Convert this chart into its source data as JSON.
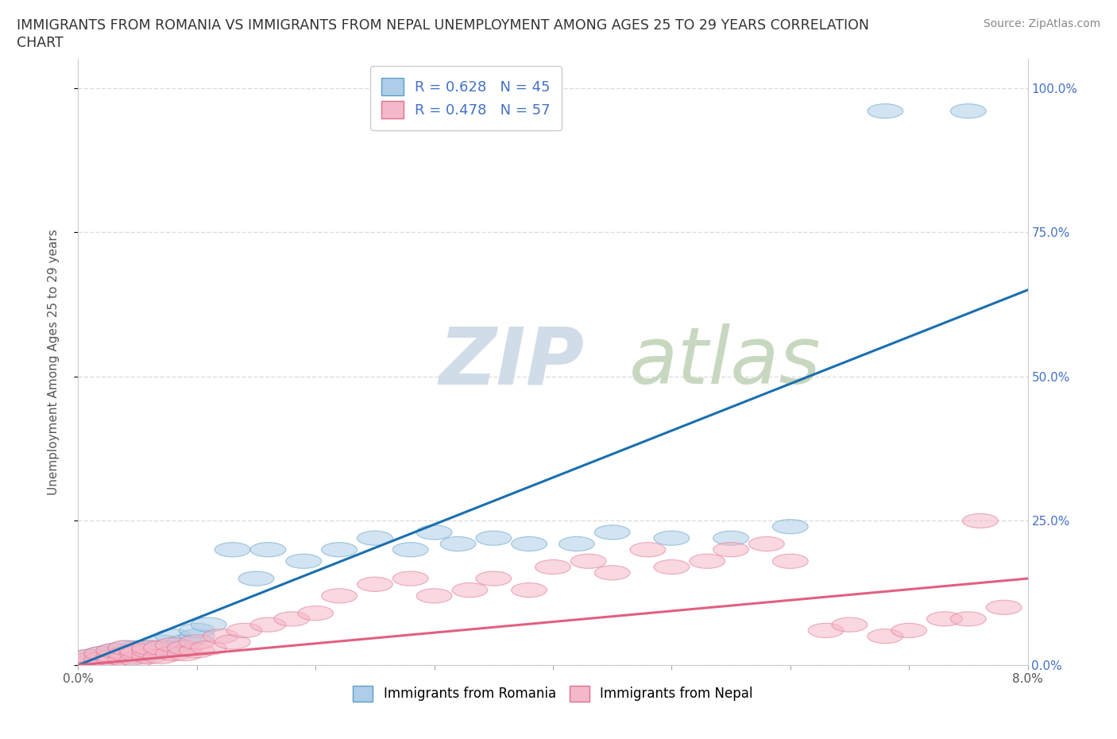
{
  "title_line1": "IMMIGRANTS FROM ROMANIA VS IMMIGRANTS FROM NEPAL UNEMPLOYMENT AMONG AGES 25 TO 29 YEARS CORRELATION",
  "title_line2": "CHART",
  "source": "Source: ZipAtlas.com",
  "ylabel": "Unemployment Among Ages 25 to 29 years",
  "xlim": [
    0.0,
    0.08
  ],
  "ylim": [
    0.0,
    1.05
  ],
  "xticks": [
    0.0,
    0.01,
    0.02,
    0.03,
    0.04,
    0.05,
    0.06,
    0.07,
    0.08
  ],
  "yticks": [
    0.0,
    0.25,
    0.5,
    0.75,
    1.0
  ],
  "ytick_labels": [
    "0.0%",
    "25.0%",
    "50.0%",
    "75.0%",
    "100.0%"
  ],
  "xtick_labels": [
    "0.0%",
    "",
    "",
    "",
    "",
    "",
    "",
    "",
    "8.0%"
  ],
  "romania_color": "#aecde8",
  "nepal_color": "#f5b8c8",
  "romania_edge_color": "#5a9fc4",
  "nepal_edge_color": "#e07090",
  "romania_line_color": "#1a6faf",
  "nepal_line_color": "#e06080",
  "background_color": "#ffffff",
  "grid_color": "#dddddd",
  "romania_R": 0.628,
  "romania_N": 45,
  "nepal_R": 0.478,
  "nepal_N": 57,
  "romania_scatter_x": [
    0.001,
    0.001,
    0.001,
    0.002,
    0.002,
    0.002,
    0.002,
    0.003,
    0.003,
    0.003,
    0.003,
    0.004,
    0.004,
    0.004,
    0.005,
    0.005,
    0.005,
    0.006,
    0.006,
    0.007,
    0.007,
    0.008,
    0.008,
    0.009,
    0.01,
    0.01,
    0.011,
    0.013,
    0.015,
    0.016,
    0.019,
    0.022,
    0.025,
    0.028,
    0.03,
    0.032,
    0.035,
    0.038,
    0.042,
    0.045,
    0.05,
    0.055,
    0.06,
    0.068,
    0.075
  ],
  "romania_scatter_y": [
    0.005,
    0.01,
    0.015,
    0.005,
    0.01,
    0.015,
    0.02,
    0.01,
    0.015,
    0.02,
    0.025,
    0.01,
    0.02,
    0.03,
    0.015,
    0.025,
    0.03,
    0.02,
    0.03,
    0.025,
    0.04,
    0.03,
    0.05,
    0.04,
    0.05,
    0.06,
    0.07,
    0.2,
    0.15,
    0.2,
    0.18,
    0.2,
    0.22,
    0.2,
    0.23,
    0.21,
    0.22,
    0.21,
    0.21,
    0.23,
    0.22,
    0.22,
    0.24,
    0.96,
    0.96
  ],
  "nepal_scatter_x": [
    0.001,
    0.001,
    0.001,
    0.002,
    0.002,
    0.002,
    0.003,
    0.003,
    0.003,
    0.004,
    0.004,
    0.004,
    0.005,
    0.005,
    0.005,
    0.006,
    0.006,
    0.006,
    0.007,
    0.007,
    0.008,
    0.008,
    0.009,
    0.009,
    0.01,
    0.01,
    0.011,
    0.012,
    0.013,
    0.014,
    0.016,
    0.018,
    0.02,
    0.022,
    0.025,
    0.028,
    0.03,
    0.033,
    0.035,
    0.038,
    0.04,
    0.043,
    0.045,
    0.048,
    0.05,
    0.053,
    0.055,
    0.058,
    0.06,
    0.063,
    0.065,
    0.068,
    0.07,
    0.073,
    0.075,
    0.076,
    0.078
  ],
  "nepal_scatter_y": [
    0.005,
    0.01,
    0.015,
    0.005,
    0.01,
    0.02,
    0.01,
    0.015,
    0.025,
    0.01,
    0.02,
    0.03,
    0.01,
    0.02,
    0.025,
    0.015,
    0.025,
    0.03,
    0.015,
    0.03,
    0.02,
    0.035,
    0.02,
    0.03,
    0.025,
    0.04,
    0.03,
    0.05,
    0.04,
    0.06,
    0.07,
    0.08,
    0.09,
    0.12,
    0.14,
    0.15,
    0.12,
    0.13,
    0.15,
    0.13,
    0.17,
    0.18,
    0.16,
    0.2,
    0.17,
    0.18,
    0.2,
    0.21,
    0.18,
    0.06,
    0.07,
    0.05,
    0.06,
    0.08,
    0.08,
    0.25,
    0.1
  ]
}
